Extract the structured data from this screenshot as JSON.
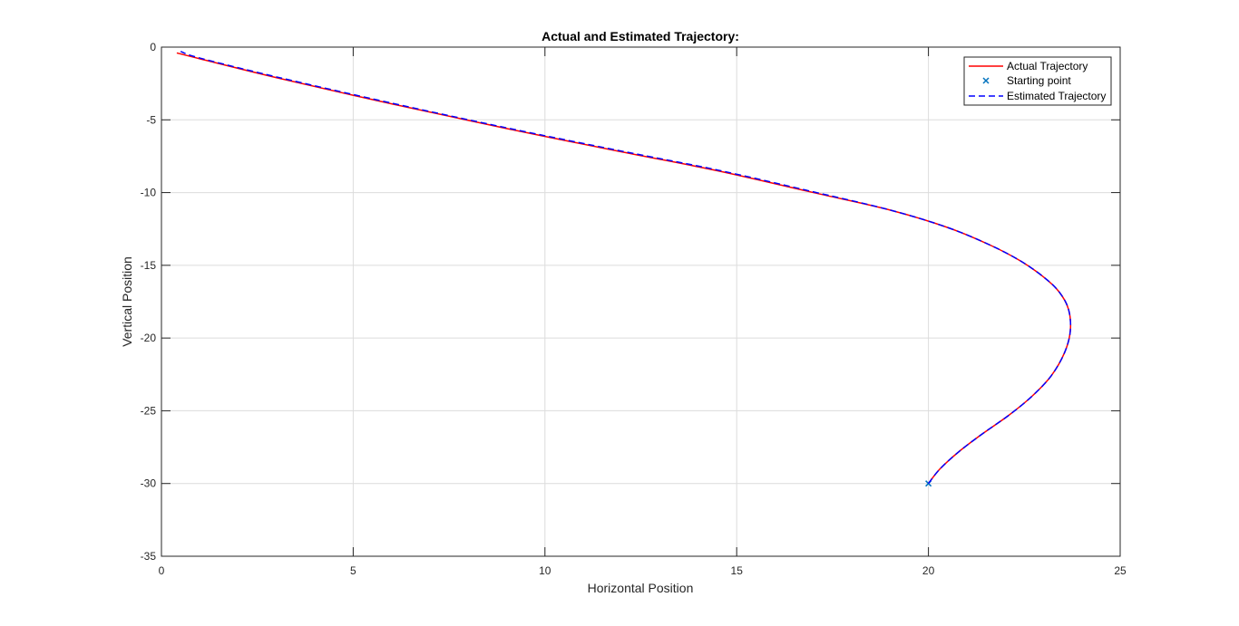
{
  "chart_data": {
    "type": "line",
    "title": "Actual and Estimated Trajectory:",
    "xlabel": "Horizontal Position",
    "ylabel": "Vertical Position",
    "xlim": [
      0,
      25
    ],
    "ylim": [
      -35,
      0
    ],
    "xticks": [
      0,
      5,
      10,
      15,
      20,
      25
    ],
    "yticks": [
      0,
      -5,
      -10,
      -15,
      -20,
      -25,
      -30,
      -35
    ],
    "xtick_labels": [
      "0",
      "5",
      "10",
      "15",
      "20",
      "25"
    ],
    "ytick_labels": [
      "0",
      "-5",
      "-10",
      "-15",
      "-20",
      "-25",
      "-30",
      "-35"
    ],
    "grid": true,
    "legend_position": "top-right",
    "series": [
      {
        "name": "Actual Trajectory",
        "color": "#ff0000",
        "style": "solid",
        "x": [
          20.0,
          20.3,
          20.8,
          21.4,
          22.1,
          22.7,
          23.2,
          23.55,
          23.7,
          23.65,
          23.4,
          23.0,
          22.4,
          21.6,
          20.5,
          19.0,
          17.0,
          14.5,
          12.0,
          9.0,
          6.0,
          3.0,
          1.0,
          0.4
        ],
        "y": [
          -30.0,
          -29.0,
          -27.8,
          -26.6,
          -25.3,
          -24.0,
          -22.6,
          -21.0,
          -19.5,
          -18.0,
          -16.8,
          -15.8,
          -14.7,
          -13.6,
          -12.4,
          -11.2,
          -10.0,
          -8.5,
          -7.2,
          -5.6,
          -3.9,
          -2.1,
          -0.8,
          -0.4
        ]
      },
      {
        "name": "Starting point",
        "color": "#0072bd",
        "style": "marker-x",
        "x": [
          20.0
        ],
        "y": [
          -30.0
        ]
      },
      {
        "name": "Estimated Trajectory",
        "color": "#0000ff",
        "style": "dashed",
        "x": [
          20.0,
          20.3,
          20.8,
          21.4,
          22.1,
          22.7,
          23.2,
          23.55,
          23.7,
          23.65,
          23.4,
          23.0,
          22.4,
          21.6,
          20.5,
          19.0,
          17.0,
          14.5,
          12.0,
          9.0,
          6.0,
          3.0,
          1.0,
          0.5
        ],
        "y": [
          -30.0,
          -29.0,
          -27.8,
          -26.6,
          -25.3,
          -24.0,
          -22.6,
          -21.0,
          -19.5,
          -18.0,
          -16.8,
          -15.8,
          -14.7,
          -13.6,
          -12.4,
          -11.2,
          -9.95,
          -8.45,
          -7.15,
          -5.55,
          -3.85,
          -2.05,
          -0.75,
          -0.3
        ]
      }
    ]
  }
}
